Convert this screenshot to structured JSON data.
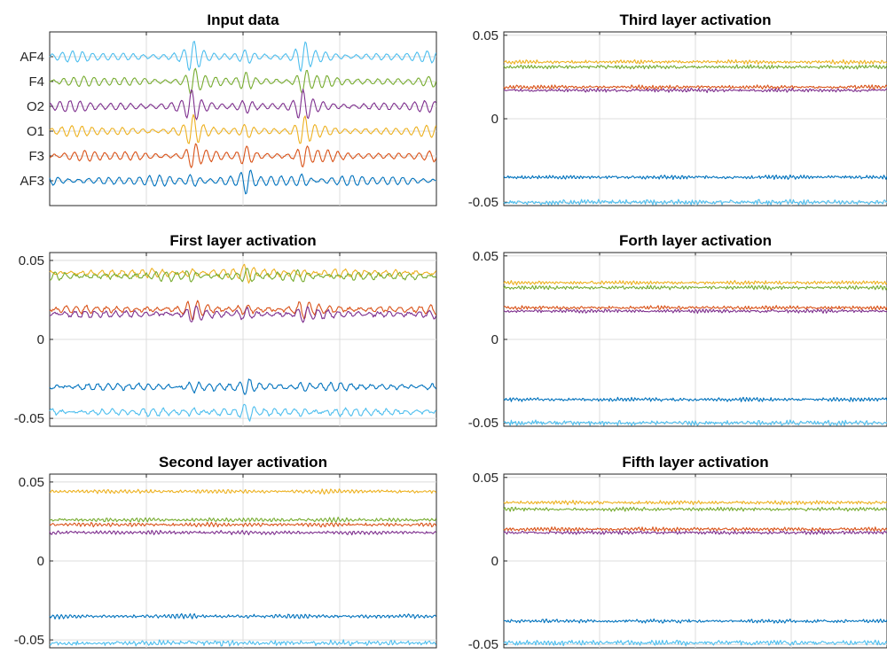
{
  "chart_data": [
    {
      "type": "line",
      "title": "Input data",
      "yticks": [
        "AF4",
        "F4",
        "O2",
        "O1",
        "F3",
        "AF3"
      ],
      "channels": [
        "AF4",
        "F4",
        "O2",
        "O1",
        "F3",
        "AF3"
      ],
      "ylim": [
        0,
        7
      ],
      "grid": true,
      "series": [
        {
          "channel": "AF4",
          "level": 6,
          "color": "#4DBEEE"
        },
        {
          "channel": "F4",
          "level": 5,
          "color": "#77AC30"
        },
        {
          "channel": "O2",
          "level": 4,
          "color": "#7E2F8E"
        },
        {
          "channel": "O1",
          "level": 3,
          "color": "#EDB120"
        },
        {
          "channel": "F3",
          "level": 2,
          "color": "#D95319"
        },
        {
          "channel": "AF3",
          "level": 1,
          "color": "#0072BD"
        }
      ]
    },
    {
      "type": "line",
      "title": "Third layer activation",
      "yticks": [
        "0.05",
        "0",
        "-0.05"
      ],
      "ylim": [
        -0.052,
        0.052
      ],
      "grid": true,
      "series": [
        {
          "channel": "O1",
          "level": 0.034,
          "color": "#EDB120"
        },
        {
          "channel": "F4",
          "level": 0.031,
          "color": "#77AC30"
        },
        {
          "channel": "F3",
          "level": 0.019,
          "color": "#D95319"
        },
        {
          "channel": "O2",
          "level": 0.017,
          "color": "#7E2F8E"
        },
        {
          "channel": "AF3",
          "level": -0.035,
          "color": "#0072BD"
        },
        {
          "channel": "AF4",
          "level": -0.05,
          "color": "#4DBEEE"
        }
      ]
    },
    {
      "type": "line",
      "title": "First layer activation",
      "yticks": [
        "0.05",
        "0",
        "-0.05"
      ],
      "ylim": [
        -0.055,
        0.055
      ],
      "grid": true,
      "series": [
        {
          "channel": "O1",
          "level": 0.042,
          "color": "#EDB120"
        },
        {
          "channel": "F4",
          "level": 0.04,
          "color": "#77AC30"
        },
        {
          "channel": "F3",
          "level": 0.019,
          "color": "#D95319"
        },
        {
          "channel": "O2",
          "level": 0.016,
          "color": "#7E2F8E"
        },
        {
          "channel": "AF3",
          "level": -0.03,
          "color": "#0072BD"
        },
        {
          "channel": "AF4",
          "level": -0.046,
          "color": "#4DBEEE"
        }
      ]
    },
    {
      "type": "line",
      "title": "Forth layer activation",
      "yticks": [
        "0.05",
        "0",
        "-0.05"
      ],
      "ylim": [
        -0.052,
        0.052
      ],
      "grid": true,
      "series": [
        {
          "channel": "O1",
          "level": 0.034,
          "color": "#EDB120"
        },
        {
          "channel": "F4",
          "level": 0.031,
          "color": "#77AC30"
        },
        {
          "channel": "F3",
          "level": 0.019,
          "color": "#D95319"
        },
        {
          "channel": "O2",
          "level": 0.017,
          "color": "#7E2F8E"
        },
        {
          "channel": "AF3",
          "level": -0.036,
          "color": "#0072BD"
        },
        {
          "channel": "AF4",
          "level": -0.05,
          "color": "#4DBEEE"
        }
      ]
    },
    {
      "type": "line",
      "title": "Second layer activation",
      "yticks": [
        "0.05",
        "0",
        "-0.05"
      ],
      "ylim": [
        -0.055,
        0.055
      ],
      "grid": true,
      "series": [
        {
          "channel": "O1",
          "level": 0.044,
          "color": "#EDB120"
        },
        {
          "channel": "F4",
          "level": 0.026,
          "color": "#77AC30"
        },
        {
          "channel": "F3",
          "level": 0.023,
          "color": "#D95319"
        },
        {
          "channel": "O2",
          "level": 0.018,
          "color": "#7E2F8E"
        },
        {
          "channel": "AF3",
          "level": -0.035,
          "color": "#0072BD"
        },
        {
          "channel": "AF4",
          "level": -0.052,
          "color": "#4DBEEE"
        }
      ]
    },
    {
      "type": "line",
      "title": "Fifth layer activation",
      "yticks": [
        "0.05",
        "0",
        "-0.05"
      ],
      "ylim": [
        -0.052,
        0.052
      ],
      "grid": true,
      "series": [
        {
          "channel": "O1",
          "level": 0.035,
          "color": "#EDB120"
        },
        {
          "channel": "F4",
          "level": 0.031,
          "color": "#77AC30"
        },
        {
          "channel": "F3",
          "level": 0.019,
          "color": "#D95319"
        },
        {
          "channel": "O2",
          "level": 0.017,
          "color": "#7E2F8E"
        },
        {
          "channel": "AF3",
          "level": -0.036,
          "color": "#0072BD"
        },
        {
          "channel": "AF4",
          "level": -0.049,
          "color": "#4DBEEE"
        }
      ]
    }
  ]
}
